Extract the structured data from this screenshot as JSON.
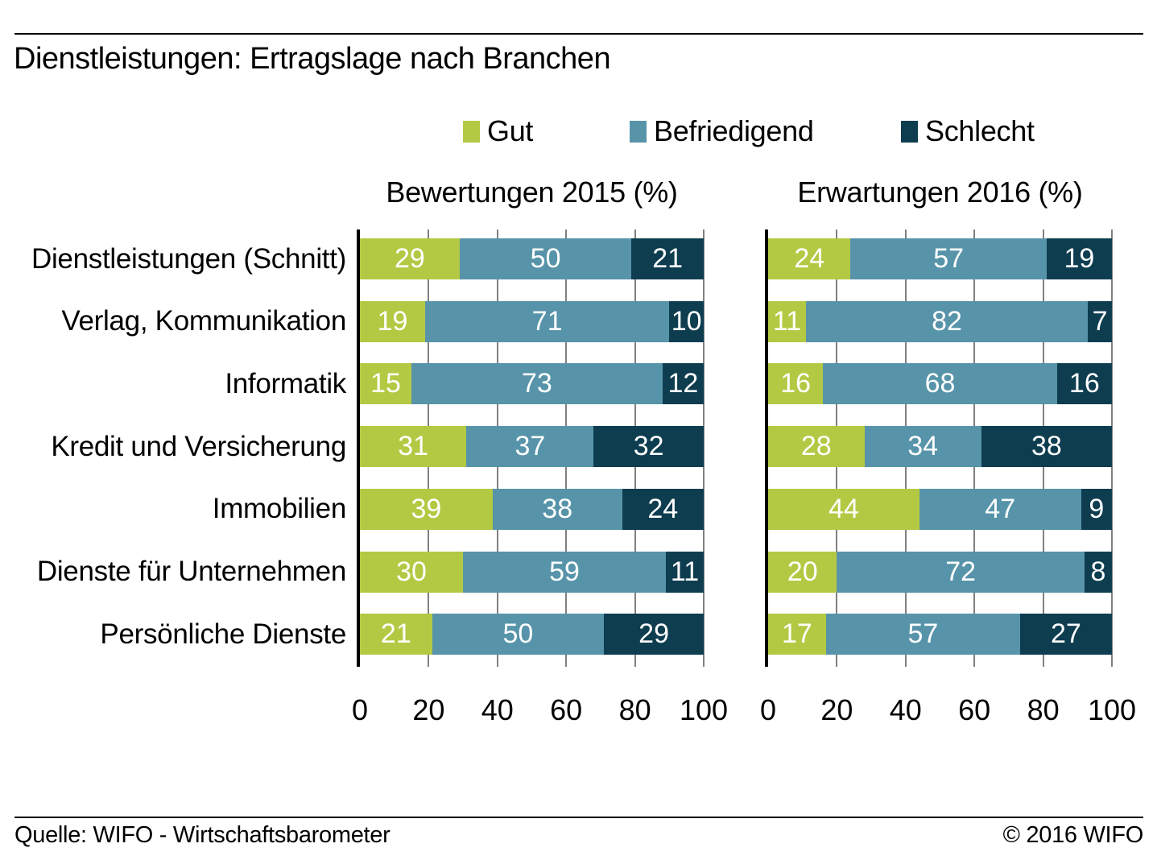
{
  "title": "Dienstleistungen: Ertragslage nach Branchen",
  "legend": [
    {
      "label": "Gut",
      "color": "#b4c943"
    },
    {
      "label": "Befriedigend",
      "color": "#5794a9"
    },
    {
      "label": "Schlecht",
      "color": "#0e3d50"
    }
  ],
  "footer": {
    "source": "Quelle: WIFO - Wirtschaftsbarometer",
    "copyright": "© 2016 WIFO"
  },
  "chart_data": {
    "type": "bar",
    "orientation": "horizontal",
    "stacked": true,
    "xlim": [
      0,
      100
    ],
    "ticks": [
      0,
      20,
      40,
      60,
      80,
      100
    ],
    "grid": true,
    "legend_position": "top",
    "categories": [
      "Dienstleistungen (Schnitt)",
      "Verlag, Kommunikation",
      "Informatik",
      "Kredit und Versicherung",
      "Immobilien",
      "Dienste für Unternehmen",
      "Persönliche Dienste"
    ],
    "panels": [
      {
        "title": "Bewertungen 2015 (%)",
        "series": [
          {
            "name": "Gut",
            "values": [
              29,
              19,
              15,
              31,
              39,
              30,
              21
            ]
          },
          {
            "name": "Befriedigend",
            "values": [
              50,
              71,
              73,
              37,
              38,
              59,
              50
            ]
          },
          {
            "name": "Schlecht",
            "values": [
              21,
              10,
              12,
              32,
              24,
              11,
              29
            ]
          }
        ]
      },
      {
        "title": "Erwartungen 2016 (%)",
        "series": [
          {
            "name": "Gut",
            "values": [
              24,
              11,
              16,
              28,
              44,
              20,
              17
            ]
          },
          {
            "name": "Befriedigend",
            "values": [
              57,
              82,
              68,
              34,
              47,
              72,
              57
            ]
          },
          {
            "name": "Schlecht",
            "values": [
              19,
              7,
              16,
              38,
              9,
              8,
              27
            ]
          }
        ]
      }
    ]
  }
}
